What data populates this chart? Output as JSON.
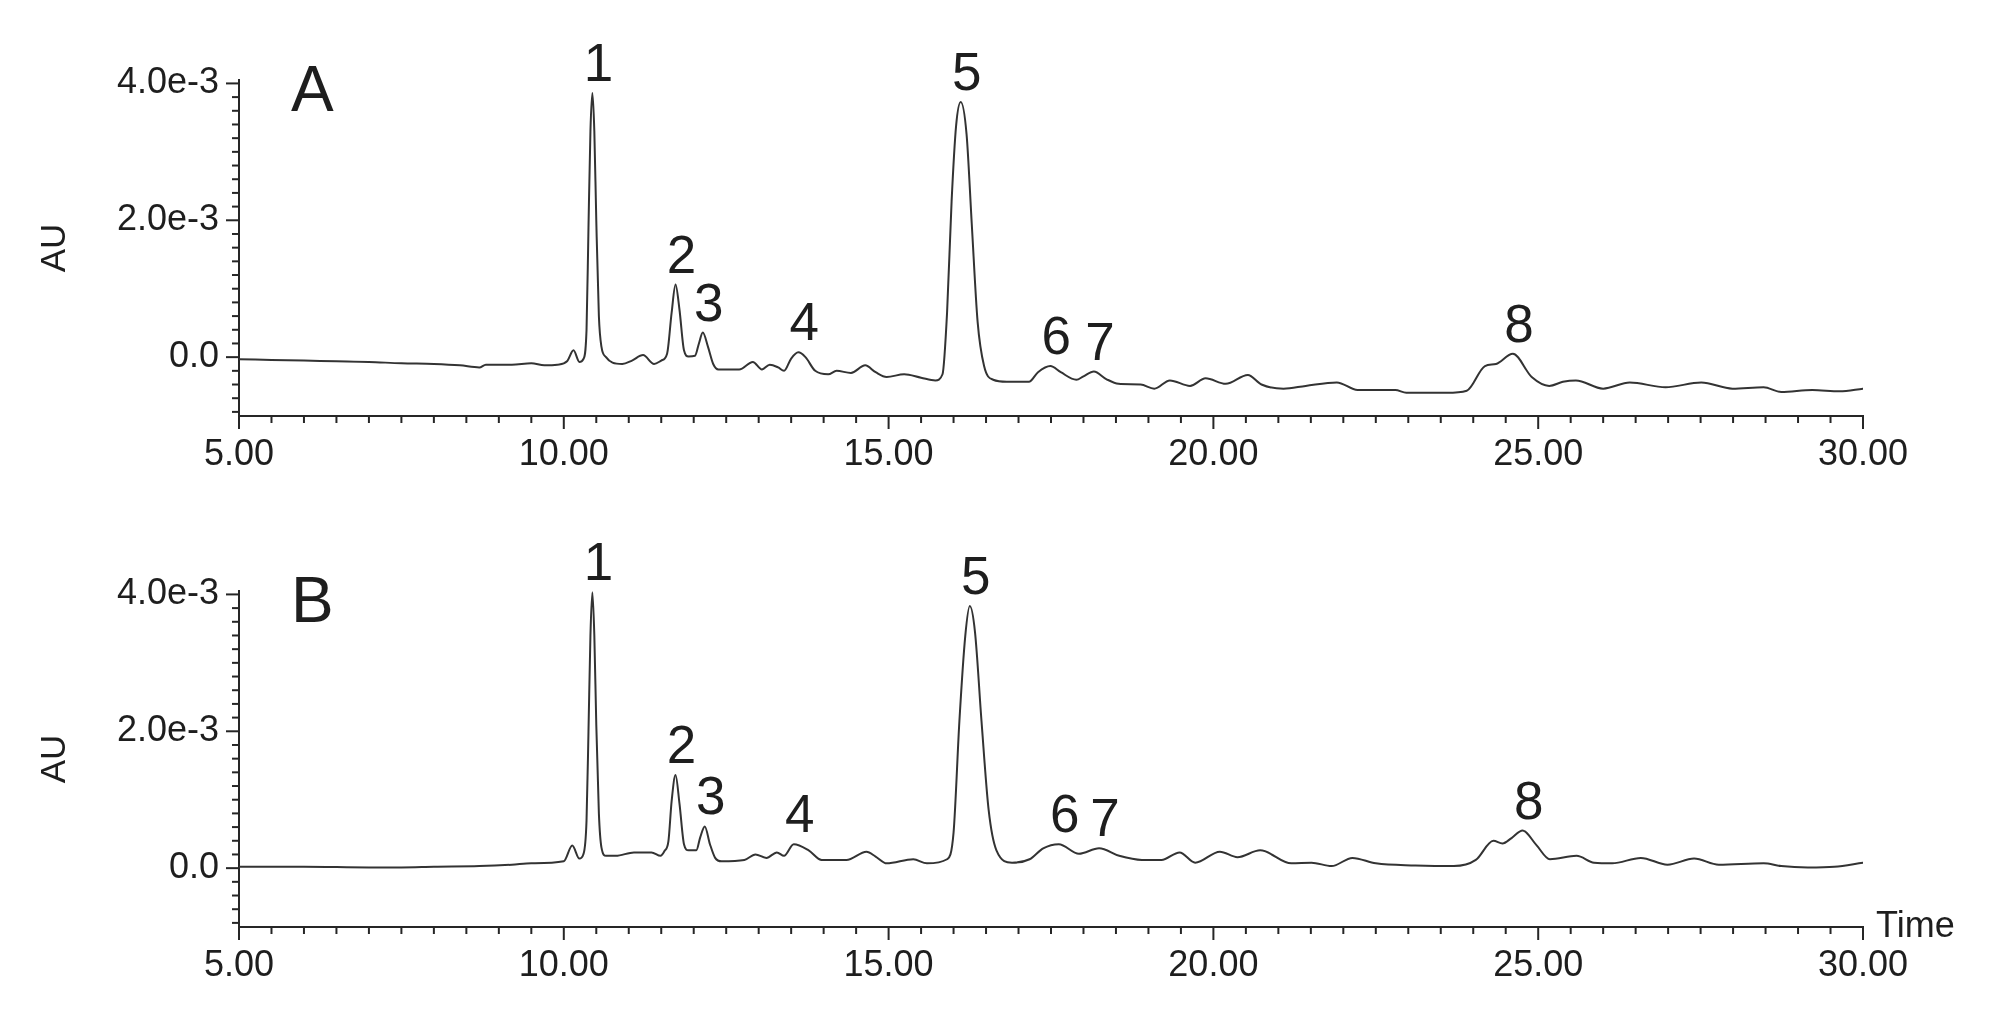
{
  "chart_data": [
    {
      "type": "line",
      "title": "A",
      "ylabel": "AU",
      "x": [
        5.0,
        5.5,
        6.0,
        6.5,
        7.0,
        7.5,
        8.0,
        8.4,
        8.7,
        8.8,
        9.2,
        9.5,
        9.7,
        9.9,
        10.05,
        10.15,
        10.24,
        10.3,
        10.35,
        10.38,
        10.41,
        10.44,
        10.47,
        10.5,
        10.54,
        10.58,
        10.65,
        10.75,
        10.9,
        11.05,
        11.22,
        11.39,
        11.5,
        11.59,
        11.66,
        11.72,
        11.78,
        11.85,
        11.92,
        12.02,
        12.08,
        12.14,
        12.22,
        12.3,
        12.38,
        12.7,
        12.91,
        13.05,
        13.17,
        13.3,
        13.39,
        13.5,
        13.61,
        13.72,
        13.87,
        14.07,
        14.2,
        14.42,
        14.64,
        14.8,
        14.97,
        15.24,
        15.5,
        15.72,
        15.83,
        15.9,
        15.97,
        16.04,
        16.11,
        16.2,
        16.28,
        16.37,
        16.47,
        16.61,
        16.82,
        17.16,
        17.3,
        17.49,
        17.65,
        17.89,
        18.0,
        18.16,
        18.35,
        18.54,
        18.88,
        19.09,
        19.33,
        19.64,
        19.88,
        20.19,
        20.53,
        20.74,
        21.08,
        21.42,
        21.9,
        22.22,
        22.8,
        22.97,
        23.59,
        23.9,
        24.18,
        24.35,
        24.61,
        24.9,
        25.17,
        25.38,
        25.58,
        26.0,
        26.41,
        26.96,
        27.51,
        27.99,
        28.47,
        28.74,
        29.22,
        29.64,
        30.0
      ],
      "series": [
        {
          "color": "#333333",
          "values": [
            -3e-05,
            -4e-05,
            -5e-05,
            -6e-05,
            -7e-05,
            -9e-05,
            -0.0001,
            -0.00012,
            -0.00015,
            -0.00011,
            -0.00011,
            -9e-05,
            -0.00012,
            -0.00011,
            -6e-05,
            0.0001,
            -7e-05,
            -3e-05,
            0.0004,
            0.0019,
            0.0033,
            0.00386,
            0.0033,
            0.002,
            0.0006,
            0.00015,
            0.0,
            -8e-05,
            -0.0001,
            -5e-05,
            3e-05,
            -0.0001,
            -5e-05,
            5e-05,
            0.00065,
            0.00106,
            0.0007,
            0.0001,
            1e-05,
            2e-05,
            0.0002,
            0.00036,
            0.00015,
            -0.0001,
            -0.00018,
            -0.00018,
            -7e-05,
            -0.00018,
            -0.00011,
            -0.00015,
            -0.0002,
            -2e-05,
            7e-05,
            0.0,
            -0.0002,
            -0.00025,
            -0.0002,
            -0.00023,
            -0.00012,
            -0.00022,
            -0.00029,
            -0.00025,
            -0.0003,
            -0.00034,
            -0.00025,
            0.00065,
            0.00228,
            0.00339,
            0.00373,
            0.00326,
            0.00195,
            0.00052,
            -0.00013,
            -0.00033,
            -0.00036,
            -0.00036,
            -0.00022,
            -0.00013,
            -0.00022,
            -0.00033,
            -0.00028,
            -0.00021,
            -0.00032,
            -0.00039,
            -0.0004,
            -0.00046,
            -0.00034,
            -0.00042,
            -0.00031,
            -0.00039,
            -0.00026,
            -0.0004,
            -0.00046,
            -0.00042,
            -0.00037,
            -0.00048,
            -0.00048,
            -0.00052,
            -0.00052,
            -0.00049,
            -0.00013,
            -0.0001,
            5e-05,
            -0.00029,
            -0.00042,
            -0.00036,
            -0.00034,
            -0.00046,
            -0.00037,
            -0.00044,
            -0.00037,
            -0.00046,
            -0.00044,
            -0.00051,
            -0.00048,
            -0.0005,
            -0.00046
          ]
        }
      ],
      "xlim": [
        5,
        30
      ],
      "ylim": [
        -0.00086,
        0.00405
      ],
      "xticks": [
        {
          "value": 5,
          "label": "5.00"
        },
        {
          "value": 5.5,
          "label": null
        },
        {
          "value": 6,
          "label": null
        },
        {
          "value": 6.5,
          "label": null
        },
        {
          "value": 7,
          "label": null
        },
        {
          "value": 7.5,
          "label": null
        },
        {
          "value": 8,
          "label": null
        },
        {
          "value": 8.5,
          "label": null
        },
        {
          "value": 9,
          "label": null
        },
        {
          "value": 9.5,
          "label": null
        },
        {
          "value": 10,
          "label": "10.00"
        },
        {
          "value": 10.5,
          "label": null
        },
        {
          "value": 11,
          "label": null
        },
        {
          "value": 11.5,
          "label": null
        },
        {
          "value": 12,
          "label": null
        },
        {
          "value": 12.5,
          "label": null
        },
        {
          "value": 13,
          "label": null
        },
        {
          "value": 13.5,
          "label": null
        },
        {
          "value": 14,
          "label": null
        },
        {
          "value": 14.5,
          "label": null
        },
        {
          "value": 15,
          "label": "15.00"
        },
        {
          "value": 15.5,
          "label": null
        },
        {
          "value": 16,
          "label": null
        },
        {
          "value": 16.5,
          "label": null
        },
        {
          "value": 17,
          "label": null
        },
        {
          "value": 17.5,
          "label": null
        },
        {
          "value": 18,
          "label": null
        },
        {
          "value": 18.5,
          "label": null
        },
        {
          "value": 19,
          "label": null
        },
        {
          "value": 19.5,
          "label": null
        },
        {
          "value": 20,
          "label": "20.00"
        },
        {
          "value": 20.5,
          "label": null
        },
        {
          "value": 21,
          "label": null
        },
        {
          "value": 21.5,
          "label": null
        },
        {
          "value": 22,
          "label": null
        },
        {
          "value": 22.5,
          "label": null
        },
        {
          "value": 23,
          "label": null
        },
        {
          "value": 23.5,
          "label": null
        },
        {
          "value": 24,
          "label": null
        },
        {
          "value": 24.5,
          "label": null
        },
        {
          "value": 25,
          "label": "25.00"
        },
        {
          "value": 25.5,
          "label": null
        },
        {
          "value": 26,
          "label": null
        },
        {
          "value": 26.5,
          "label": null
        },
        {
          "value": 27,
          "label": null
        },
        {
          "value": 27.5,
          "label": null
        },
        {
          "value": 28,
          "label": null
        },
        {
          "value": 28.5,
          "label": null
        },
        {
          "value": 29,
          "label": null
        },
        {
          "value": 29.5,
          "label": null
        },
        {
          "value": 30,
          "label": "30.00"
        }
      ],
      "yticks": [
        {
          "value": -0.0008,
          "label": null
        },
        {
          "value": -0.0006,
          "label": null
        },
        {
          "value": -0.0004,
          "label": null
        },
        {
          "value": -0.0002,
          "label": null
        },
        {
          "value": 0,
          "label": "0.0"
        },
        {
          "value": 0.0002,
          "label": null
        },
        {
          "value": 0.0004,
          "label": null
        },
        {
          "value": 0.0006,
          "label": null
        },
        {
          "value": 0.0008,
          "label": null
        },
        {
          "value": 0.001,
          "label": null
        },
        {
          "value": 0.0012,
          "label": null
        },
        {
          "value": 0.0014,
          "label": null
        },
        {
          "value": 0.0016,
          "label": null
        },
        {
          "value": 0.0018,
          "label": null
        },
        {
          "value": 0.002,
          "label": "2.0e-3"
        },
        {
          "value": 0.0022,
          "label": null
        },
        {
          "value": 0.0024,
          "label": null
        },
        {
          "value": 0.0026,
          "label": null
        },
        {
          "value": 0.0028,
          "label": null
        },
        {
          "value": 0.003,
          "label": null
        },
        {
          "value": 0.0032,
          "label": null
        },
        {
          "value": 0.0034,
          "label": null
        },
        {
          "value": 0.0036,
          "label": null
        },
        {
          "value": 0.0038,
          "label": null
        },
        {
          "value": 0.004,
          "label": "4.0e-3"
        }
      ],
      "annotations": [
        {
          "text": "1",
          "x": 10.44,
          "y": 0.00386
        },
        {
          "text": "2",
          "x": 11.72,
          "y": 0.00106
        },
        {
          "text": "3",
          "x": 12.14,
          "y": 0.00036
        },
        {
          "text": "4",
          "x": 13.61,
          "y": 7e-05
        },
        {
          "text": "5",
          "x": 16.11,
          "y": 0.00373
        },
        {
          "text": "6",
          "x": 17.49,
          "y": -0.00013
        },
        {
          "text": "7",
          "x": 18.16,
          "y": -0.00021
        },
        {
          "text": "8",
          "x": 24.61,
          "y": 5e-05
        }
      ]
    },
    {
      "type": "line",
      "title": "B",
      "xlabel": "Time",
      "ylabel": "AU",
      "x": [
        5.0,
        6.0,
        7.0,
        7.5,
        8.0,
        8.7,
        9.2,
        9.5,
        10.0,
        10.13,
        10.24,
        10.3,
        10.35,
        10.38,
        10.41,
        10.44,
        10.47,
        10.5,
        10.54,
        10.58,
        10.65,
        10.8,
        11.08,
        11.35,
        11.49,
        11.55,
        11.61,
        11.66,
        11.72,
        11.78,
        11.85,
        11.92,
        12.04,
        12.1,
        12.17,
        12.25,
        12.33,
        12.43,
        12.78,
        12.95,
        13.12,
        13.28,
        13.39,
        13.54,
        13.77,
        13.97,
        14.35,
        14.66,
        14.8,
        14.97,
        15.38,
        15.59,
        15.9,
        16.0,
        16.09,
        16.18,
        16.25,
        16.33,
        16.43,
        16.54,
        16.66,
        16.9,
        17.17,
        17.38,
        17.62,
        17.93,
        18.24,
        18.55,
        18.9,
        19.2,
        19.48,
        19.72,
        20.1,
        20.37,
        20.72,
        21.2,
        21.51,
        21.82,
        22.14,
        22.5,
        23.11,
        23.7,
        24.04,
        24.31,
        24.45,
        24.59,
        24.76,
        24.97,
        25.18,
        25.59,
        25.86,
        26.14,
        26.58,
        26.99,
        27.4,
        27.78,
        28.47,
        28.74,
        29.15,
        29.56,
        30.0
      ],
      "series": [
        {
          "color": "#333333",
          "values": [
            2e-05,
            2e-05,
            1e-05,
            1e-05,
            2e-05,
            3e-05,
            5e-05,
            7e-05,
            0.0001,
            0.00033,
            0.00014,
            0.0002,
            0.0007,
            0.002,
            0.0034,
            0.00403,
            0.0034,
            0.0021,
            0.0008,
            0.0003,
            0.00018,
            0.00018,
            0.00023,
            0.00023,
            0.00018,
            0.00025,
            0.00039,
            0.00098,
            0.00136,
            0.00095,
            0.00035,
            0.00026,
            0.00026,
            0.00045,
            0.00061,
            0.00035,
            0.00015,
            0.0001,
            0.00012,
            0.0002,
            0.00015,
            0.00023,
            0.00018,
            0.00035,
            0.00026,
            0.00012,
            0.00012,
            0.00024,
            0.00017,
            7e-05,
            0.00013,
            7e-05,
            0.00013,
            0.00052,
            0.00215,
            0.00339,
            0.00383,
            0.00345,
            0.00215,
            0.00085,
            0.00026,
            8e-05,
            0.00013,
            0.00029,
            0.00035,
            0.00021,
            0.00029,
            0.00018,
            0.00012,
            0.00012,
            0.00023,
            8e-05,
            0.00024,
            0.00016,
            0.00026,
            7e-05,
            8e-05,
            3e-05,
            0.00015,
            7e-05,
            4e-05,
            3e-05,
            0.00012,
            0.0004,
            0.00036,
            0.00044,
            0.00055,
            0.00034,
            0.00013,
            0.00018,
            8e-05,
            7e-05,
            0.00015,
            5e-05,
            0.00014,
            5e-05,
            7e-05,
            3e-05,
            1e-05,
            2e-05,
            8e-05
          ]
        }
      ],
      "xlim": [
        5,
        30
      ],
      "ylim": [
        -0.00086,
        0.00405
      ],
      "xticks": [
        {
          "value": 5,
          "label": "5.00"
        },
        {
          "value": 5.5,
          "label": null
        },
        {
          "value": 6,
          "label": null
        },
        {
          "value": 6.5,
          "label": null
        },
        {
          "value": 7,
          "label": null
        },
        {
          "value": 7.5,
          "label": null
        },
        {
          "value": 8,
          "label": null
        },
        {
          "value": 8.5,
          "label": null
        },
        {
          "value": 9,
          "label": null
        },
        {
          "value": 9.5,
          "label": null
        },
        {
          "value": 10,
          "label": "10.00"
        },
        {
          "value": 10.5,
          "label": null
        },
        {
          "value": 11,
          "label": null
        },
        {
          "value": 11.5,
          "label": null
        },
        {
          "value": 12,
          "label": null
        },
        {
          "value": 12.5,
          "label": null
        },
        {
          "value": 13,
          "label": null
        },
        {
          "value": 13.5,
          "label": null
        },
        {
          "value": 14,
          "label": null
        },
        {
          "value": 14.5,
          "label": null
        },
        {
          "value": 15,
          "label": "15.00"
        },
        {
          "value": 15.5,
          "label": null
        },
        {
          "value": 16,
          "label": null
        },
        {
          "value": 16.5,
          "label": null
        },
        {
          "value": 17,
          "label": null
        },
        {
          "value": 17.5,
          "label": null
        },
        {
          "value": 18,
          "label": null
        },
        {
          "value": 18.5,
          "label": null
        },
        {
          "value": 19,
          "label": null
        },
        {
          "value": 19.5,
          "label": null
        },
        {
          "value": 20,
          "label": "20.00"
        },
        {
          "value": 20.5,
          "label": null
        },
        {
          "value": 21,
          "label": null
        },
        {
          "value": 21.5,
          "label": null
        },
        {
          "value": 22,
          "label": null
        },
        {
          "value": 22.5,
          "label": null
        },
        {
          "value": 23,
          "label": null
        },
        {
          "value": 23.5,
          "label": null
        },
        {
          "value": 24,
          "label": null
        },
        {
          "value": 24.5,
          "label": null
        },
        {
          "value": 25,
          "label": "25.00"
        },
        {
          "value": 25.5,
          "label": null
        },
        {
          "value": 26,
          "label": null
        },
        {
          "value": 26.5,
          "label": null
        },
        {
          "value": 27,
          "label": null
        },
        {
          "value": 27.5,
          "label": null
        },
        {
          "value": 28,
          "label": null
        },
        {
          "value": 28.5,
          "label": null
        },
        {
          "value": 29,
          "label": null
        },
        {
          "value": 29.5,
          "label": null
        },
        {
          "value": 30,
          "label": "30.00"
        }
      ],
      "yticks": [
        {
          "value": -0.0008,
          "label": null
        },
        {
          "value": -0.0006,
          "label": null
        },
        {
          "value": -0.0004,
          "label": null
        },
        {
          "value": -0.0002,
          "label": null
        },
        {
          "value": 0,
          "label": "0.0"
        },
        {
          "value": 0.0002,
          "label": null
        },
        {
          "value": 0.0004,
          "label": null
        },
        {
          "value": 0.0006,
          "label": null
        },
        {
          "value": 0.0008,
          "label": null
        },
        {
          "value": 0.001,
          "label": null
        },
        {
          "value": 0.0012,
          "label": null
        },
        {
          "value": 0.0014,
          "label": null
        },
        {
          "value": 0.0016,
          "label": null
        },
        {
          "value": 0.0018,
          "label": null
        },
        {
          "value": 0.002,
          "label": "2.0e-3"
        },
        {
          "value": 0.0022,
          "label": null
        },
        {
          "value": 0.0024,
          "label": null
        },
        {
          "value": 0.0026,
          "label": null
        },
        {
          "value": 0.0028,
          "label": null
        },
        {
          "value": 0.003,
          "label": null
        },
        {
          "value": 0.0032,
          "label": null
        },
        {
          "value": 0.0034,
          "label": null
        },
        {
          "value": 0.0036,
          "label": null
        },
        {
          "value": 0.0038,
          "label": null
        },
        {
          "value": 0.004,
          "label": "4.0e-3"
        }
      ],
      "annotations": [
        {
          "text": "1",
          "x": 10.44,
          "y": 0.00403
        },
        {
          "text": "2",
          "x": 11.72,
          "y": 0.00136
        },
        {
          "text": "3",
          "x": 12.17,
          "y": 0.00061
        },
        {
          "text": "4",
          "x": 13.54,
          "y": 0.00035
        },
        {
          "text": "5",
          "x": 16.25,
          "y": 0.00383
        },
        {
          "text": "6",
          "x": 17.62,
          "y": 0.00035
        },
        {
          "text": "7",
          "x": 18.24,
          "y": 0.00029
        },
        {
          "text": "8",
          "x": 24.76,
          "y": 0.00055
        }
      ]
    }
  ]
}
